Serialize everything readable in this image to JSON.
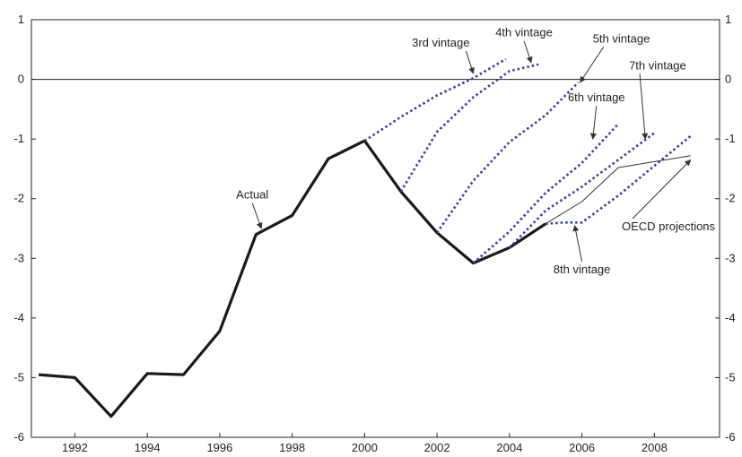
{
  "chart_data": {
    "type": "line",
    "title": "",
    "xlabel": "",
    "ylabel": "",
    "xlim": [
      1990.8,
      2009.8
    ],
    "ylim": [
      -6,
      1
    ],
    "x_ticks": [
      1992,
      1994,
      1996,
      1998,
      2000,
      2002,
      2004,
      2006,
      2008
    ],
    "y_ticks": [
      1,
      0,
      -1,
      -2,
      -3,
      -4,
      -5,
      -6
    ],
    "x_tick_labels": [
      "1992",
      "1994",
      "1996",
      "1998",
      "2000",
      "2002",
      "2004",
      "2006",
      "2008"
    ],
    "y_tick_labels": [
      "1",
      "0",
      "-1",
      "-2",
      "-3",
      "-4",
      "-5",
      "-6"
    ],
    "y_axis_right": true,
    "reference_line_y": 0,
    "grid": false,
    "series": [
      {
        "name": "Actual",
        "style": "thick-solid",
        "color": "#1a1a1a",
        "points": [
          [
            1991,
            -4.95
          ],
          [
            1992,
            -5.0
          ],
          [
            1993,
            -5.65
          ],
          [
            1994,
            -4.93
          ],
          [
            1995,
            -4.95
          ],
          [
            1996,
            -4.22
          ],
          [
            1997,
            -2.6
          ],
          [
            1998,
            -2.28
          ],
          [
            1999,
            -1.33
          ],
          [
            2000,
            -1.03
          ],
          [
            2001,
            -1.88
          ],
          [
            2002,
            -2.57
          ],
          [
            2003,
            -3.08
          ],
          [
            2004,
            -2.82
          ],
          [
            2005,
            -2.42
          ]
        ]
      },
      {
        "name": "OECD projections",
        "style": "thin-solid",
        "color": "#333333",
        "points": [
          [
            2005,
            -2.42
          ],
          [
            2006,
            -2.05
          ],
          [
            2007,
            -1.48
          ],
          [
            2008,
            -1.38
          ],
          [
            2009,
            -1.28
          ]
        ]
      },
      {
        "name": "3rd vintage",
        "style": "dotted",
        "color": "#3a3aa8",
        "points": [
          [
            2000,
            -1.03
          ],
          [
            2001,
            -0.63
          ],
          [
            2002,
            -0.27
          ],
          [
            2003,
            0.02
          ],
          [
            2003.9,
            0.34
          ]
        ]
      },
      {
        "name": "4th vintage",
        "style": "dotted",
        "color": "#3a3aa8",
        "points": [
          [
            2001,
            -1.88
          ],
          [
            2002,
            -0.88
          ],
          [
            2003,
            -0.3
          ],
          [
            2004,
            0.14
          ],
          [
            2004.8,
            0.25
          ]
        ]
      },
      {
        "name": "5th vintage",
        "style": "dotted",
        "color": "#3a3aa8",
        "points": [
          [
            2002,
            -2.57
          ],
          [
            2003,
            -1.7
          ],
          [
            2004,
            -1.05
          ],
          [
            2005,
            -0.6
          ],
          [
            2005.9,
            -0.05
          ]
        ]
      },
      {
        "name": "6th vintage",
        "style": "dotted",
        "color": "#3a3aa8",
        "points": [
          [
            2003,
            -3.08
          ],
          [
            2004,
            -2.55
          ],
          [
            2005,
            -1.9
          ],
          [
            2006,
            -1.4
          ],
          [
            2007,
            -0.75
          ]
        ]
      },
      {
        "name": "7th vintage",
        "style": "dotted",
        "color": "#3a3aa8",
        "points": [
          [
            2004,
            -2.82
          ],
          [
            2005,
            -2.2
          ],
          [
            2006,
            -1.8
          ],
          [
            2007,
            -1.35
          ],
          [
            2008,
            -0.9
          ]
        ]
      },
      {
        "name": "8th vintage",
        "style": "dotted",
        "color": "#3a3aa8",
        "points": [
          [
            2005,
            -2.42
          ],
          [
            2005.5,
            -2.4
          ],
          [
            2006,
            -2.4
          ],
          [
            2007,
            -1.95
          ],
          [
            2008,
            -1.45
          ],
          [
            2009,
            -0.95
          ]
        ]
      }
    ],
    "annotations": [
      {
        "text": "Actual",
        "label_xy": [
          1996.9,
          -2.0
        ],
        "arrow_to": [
          1997.15,
          -2.5
        ],
        "anchor": "middle"
      },
      {
        "text": "3rd vintage",
        "label_xy": [
          2002.9,
          0.55
        ],
        "arrow_to": [
          2003.0,
          0.1
        ],
        "anchor": "end"
      },
      {
        "text": "4th vintage",
        "label_xy": [
          2004.4,
          0.72
        ],
        "arrow_to": [
          2004.6,
          0.28
        ],
        "anchor": "middle"
      },
      {
        "text": "5th vintage",
        "label_xy": [
          2006.3,
          0.62
        ],
        "arrow_to": [
          2005.95,
          -0.05
        ],
        "anchor": "start"
      },
      {
        "text": "6th vintage",
        "label_xy": [
          2006.4,
          -0.37
        ],
        "arrow_to": [
          2006.3,
          -1.0
        ],
        "anchor": "middle"
      },
      {
        "text": "7th vintage",
        "label_xy": [
          2007.3,
          0.17
        ],
        "arrow_to": [
          2007.75,
          -1.0
        ],
        "anchor": "start"
      },
      {
        "text": "OECD projections",
        "label_xy": [
          2007.1,
          -2.53
        ],
        "arrow_to": [
          2009.0,
          -1.35
        ],
        "anchor": "start"
      },
      {
        "text": "8th vintage",
        "label_xy": [
          2006.0,
          -3.25
        ],
        "arrow_to": [
          2005.8,
          -2.45
        ],
        "anchor": "middle"
      }
    ]
  }
}
